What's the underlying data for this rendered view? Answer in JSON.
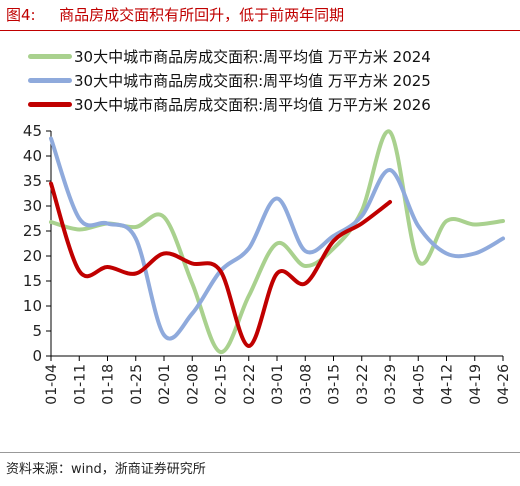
{
  "header": {
    "figure_label": "图4:",
    "title": "商品房成交面积有所回升，低于前两年同期"
  },
  "source_text": "资料来源：wind，浙商证券研究所",
  "chart_data": {
    "type": "line",
    "categories": [
      "01-04",
      "01-11",
      "01-18",
      "01-25",
      "02-01",
      "02-08",
      "02-15",
      "02-22",
      "03-01",
      "03-08",
      "03-15",
      "03-22",
      "03-29",
      "04-05",
      "04-12",
      "04-19",
      "04-26"
    ],
    "x_tick_labels": [
      "01-04",
      "01-11",
      "01-18",
      "01-25",
      "02-01",
      "02-08",
      "02-15",
      "02-22",
      "03-01",
      "03-08",
      "03-15",
      "03-22",
      "03-29",
      "04-05",
      "04-12",
      "04-19",
      "04-26"
    ],
    "ylim": [
      0,
      45
    ],
    "y_ticks": [
      0,
      5,
      10,
      15,
      20,
      25,
      30,
      35,
      40,
      45
    ],
    "legend_position": "top-left",
    "grid": false,
    "series": [
      {
        "name": "30大中城市商品房成交面积:周平均值  万平方米  2024",
        "color": "#a9d18e",
        "values": [
          26.8,
          25.3,
          26.5,
          25.8,
          27.8,
          14.5,
          0.8,
          12.0,
          22.5,
          18.0,
          21.5,
          29.0,
          44.8,
          19.0,
          27.0,
          26.3,
          27.0
        ]
      },
      {
        "name": "30大中城市商品房成交面积:周平均值  万平方米  2025",
        "color": "#8faadc",
        "values": [
          43.5,
          27.5,
          26.5,
          23.5,
          4.2,
          8.5,
          17.0,
          21.5,
          31.5,
          21.0,
          24.0,
          28.0,
          37.2,
          26.0,
          20.5,
          20.5,
          23.5
        ]
      },
      {
        "name": "30大中城市商品房成交面积:周平均值  万平方米  2026",
        "color": "#c00000",
        "values": [
          34.5,
          17.0,
          17.8,
          16.5,
          20.5,
          18.5,
          17.0,
          2.0,
          16.5,
          14.5,
          23.0,
          26.5,
          30.8,
          null,
          null,
          null,
          null
        ]
      }
    ]
  }
}
